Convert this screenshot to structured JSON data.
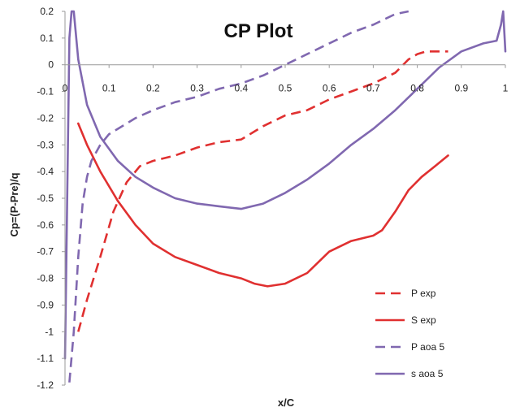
{
  "chart_data": {
    "type": "line",
    "title": "CP Plot",
    "xlabel": "x/C",
    "ylabel": "Cp=(P-Pre)/q",
    "xlim": [
      0,
      1
    ],
    "ylim": [
      -1.2,
      0.2
    ],
    "xticks": [
      "0",
      "0.1",
      "0.2",
      "0.3",
      "0.4",
      "0.5",
      "0.6",
      "0.7",
      "0.8",
      "0.9",
      "1"
    ],
    "yticks": [
      "0.2",
      "0.1",
      "0",
      "-0.1",
      "-0.2",
      "-0.3",
      "-0.4",
      "-0.5",
      "-0.6",
      "-0.7",
      "-0.8",
      "-0.9",
      "-1",
      "-1.1",
      "-1.2"
    ],
    "grid": false,
    "legend_position": "bottom-right",
    "series": [
      {
        "name": "P exp",
        "color": "#e03030",
        "dash": "dashed",
        "x": [
          0.03,
          0.05,
          0.08,
          0.11,
          0.14,
          0.17,
          0.2,
          0.25,
          0.3,
          0.35,
          0.4,
          0.45,
          0.5,
          0.55,
          0.6,
          0.65,
          0.7,
          0.75,
          0.78,
          0.8,
          0.82,
          0.84,
          0.87
        ],
        "y": [
          -1.0,
          -0.88,
          -0.72,
          -0.55,
          -0.44,
          -0.38,
          -0.36,
          -0.34,
          -0.31,
          -0.29,
          -0.28,
          -0.23,
          -0.19,
          -0.17,
          -0.13,
          -0.1,
          -0.07,
          -0.03,
          0.02,
          0.04,
          0.05,
          0.05,
          0.05
        ]
      },
      {
        "name": "S exp",
        "color": "#e03030",
        "dash": "solid",
        "x": [
          0.03,
          0.05,
          0.08,
          0.12,
          0.16,
          0.2,
          0.25,
          0.3,
          0.35,
          0.4,
          0.43,
          0.46,
          0.5,
          0.55,
          0.6,
          0.65,
          0.7,
          0.72,
          0.75,
          0.78,
          0.81,
          0.84,
          0.87
        ],
        "y": [
          -0.22,
          -0.3,
          -0.4,
          -0.51,
          -0.6,
          -0.67,
          -0.72,
          -0.75,
          -0.78,
          -0.8,
          -0.82,
          -0.83,
          -0.82,
          -0.78,
          -0.7,
          -0.66,
          -0.64,
          -0.62,
          -0.55,
          -0.47,
          -0.42,
          -0.38,
          -0.34
        ]
      },
      {
        "name": "P aoa 5",
        "color": "#8068b0",
        "dash": "dashed",
        "x": [
          0.01,
          0.02,
          0.03,
          0.04,
          0.05,
          0.06,
          0.08,
          0.1,
          0.13,
          0.16,
          0.2,
          0.25,
          0.3,
          0.35,
          0.4,
          0.45,
          0.5,
          0.55,
          0.6,
          0.65,
          0.7,
          0.75,
          0.78
        ],
        "y": [
          -1.19,
          -1.0,
          -0.72,
          -0.52,
          -0.42,
          -0.36,
          -0.3,
          -0.26,
          -0.23,
          -0.2,
          -0.17,
          -0.14,
          -0.12,
          -0.09,
          -0.07,
          -0.04,
          0.0,
          0.04,
          0.08,
          0.12,
          0.15,
          0.19,
          0.2
        ]
      },
      {
        "name": "s aoa 5",
        "color": "#8068b0",
        "dash": "solid",
        "x": [
          0.0,
          0.01,
          0.015,
          0.02,
          0.03,
          0.05,
          0.08,
          0.12,
          0.16,
          0.2,
          0.25,
          0.3,
          0.35,
          0.4,
          0.45,
          0.5,
          0.55,
          0.6,
          0.65,
          0.7,
          0.75,
          0.8,
          0.85,
          0.9,
          0.95,
          0.98,
          0.99,
          0.995,
          1.0
        ],
        "y": [
          -1.1,
          0.1,
          0.2,
          0.2,
          0.02,
          -0.15,
          -0.27,
          -0.36,
          -0.42,
          -0.46,
          -0.5,
          -0.52,
          -0.53,
          -0.54,
          -0.52,
          -0.48,
          -0.43,
          -0.37,
          -0.3,
          -0.24,
          -0.17,
          -0.09,
          -0.01,
          0.05,
          0.08,
          0.09,
          0.15,
          0.2,
          0.05
        ]
      }
    ]
  }
}
